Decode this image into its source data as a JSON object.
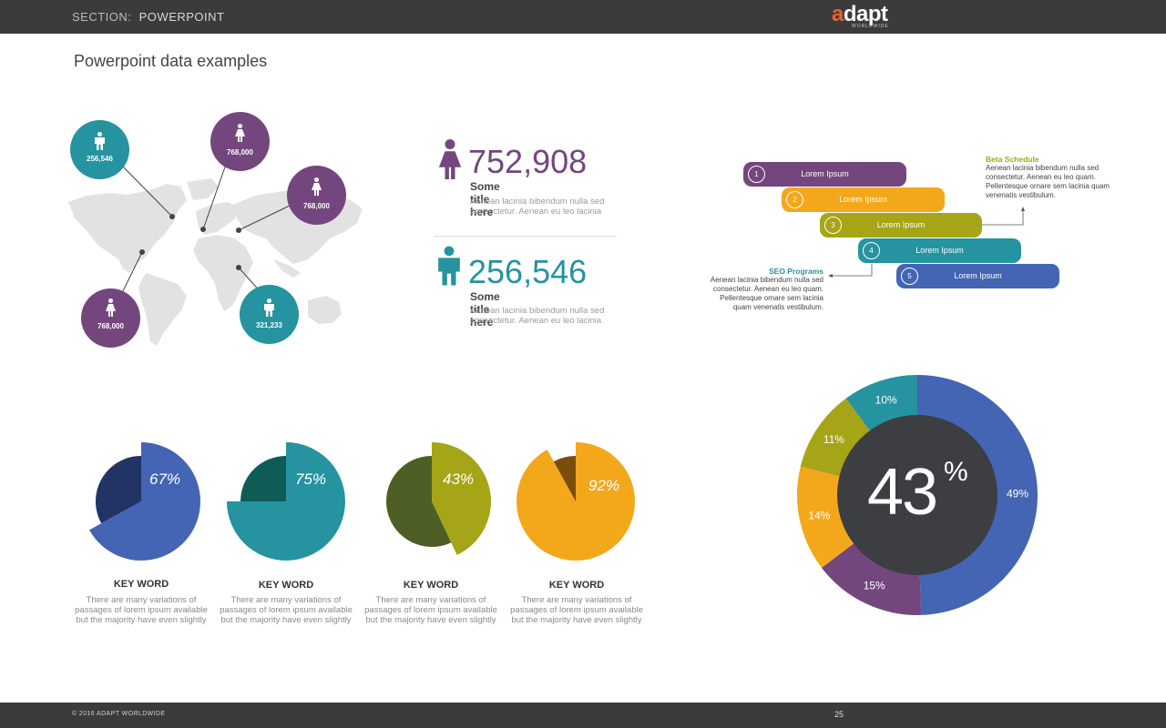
{
  "header": {
    "section_label": "SECTION:",
    "section_name": "POWERPOINT",
    "logo_text": "adapt",
    "logo_sub": "WORLDWIDE"
  },
  "page_title": "Powerpoint data examples",
  "map": {
    "bubbles": [
      "256,546",
      "768,000",
      "768,000",
      "768,000",
      "321,233"
    ]
  },
  "stats": [
    {
      "value": "752,908",
      "title": "Some title here",
      "desc": "Aenean lacinia bibendum nulla sed consectetur. Aenean eu leo lacinia",
      "color": "#74467e"
    },
    {
      "value": "256,546",
      "title": "Some title here",
      "desc": "Aenean lacinia bibendum nulla sed consectetur. Aenean eu leo lacinia",
      "color": "#2593a0"
    }
  ],
  "timeline": {
    "steps": [
      {
        "num": "1",
        "label": "Lorem Ipsum",
        "color": "#74467e"
      },
      {
        "num": "2",
        "label": "Lorem Ipsum",
        "color": "#f3a81c"
      },
      {
        "num": "3",
        "label": "Lorem Ipsum",
        "color": "#a5a517"
      },
      {
        "num": "4",
        "label": "Lorem Ipsum",
        "color": "#2593a0"
      },
      {
        "num": "5",
        "label": "Lorem Ipsum",
        "color": "#4464b4"
      }
    ],
    "beta": {
      "title": "Beta Schedule",
      "body": "Aenean lacinia bibendum nulla sed consectetur. Aenean eu leo quam. Pellentesque ornare sem lacinia quam venenatis vestibulum."
    },
    "seo": {
      "title": "SEO Programs",
      "body": "Aenean lacinia bibendum nulla sed consectetur. Aenean eu leo quam. Pellentesque ornare sem lacinia quam venenatis vestibulum."
    }
  },
  "chart_data": [
    {
      "type": "pie",
      "title": "",
      "values": [
        67,
        33
      ],
      "label": "67%",
      "colors": [
        "#4464b4",
        "#223366"
      ],
      "keyword": "KEY WORD",
      "desc": "There are many variations of passages of lorem ipsum available but the majority have even slightly"
    },
    {
      "type": "pie",
      "title": "",
      "values": [
        75,
        25
      ],
      "label": "75%",
      "colors": [
        "#2593a0",
        "#0e5c55"
      ],
      "keyword": "KEY WORD",
      "desc": "There are many variations of passages of lorem ipsum available but the majority have even slightly"
    },
    {
      "type": "pie",
      "title": "",
      "values": [
        43,
        57
      ],
      "label": "43%",
      "colors": [
        "#a5a517",
        "#4e5f26"
      ],
      "keyword": "KEY WORD",
      "desc": "There are many variations of passages of lorem ipsum available but the majority have even slightly"
    },
    {
      "type": "pie",
      "title": "",
      "values": [
        92,
        8
      ],
      "label": "92%",
      "colors": [
        "#f3a81c",
        "#7a4e0a"
      ],
      "keyword": "KEY WORD",
      "desc": "There are many variations of passages of lorem ipsum available but the majority have even slightly"
    },
    {
      "type": "pie",
      "title": "",
      "center_label": "43",
      "center_suffix": "%",
      "slices": [
        {
          "value": 49,
          "label": "49%",
          "color": "#4464b4"
        },
        {
          "value": 15,
          "label": "15%",
          "color": "#74467e"
        },
        {
          "value": 14,
          "label": "14%",
          "color": "#f3a81c"
        },
        {
          "value": 11,
          "label": "11%",
          "color": "#a5a517"
        },
        {
          "value": 10,
          "label": "10%",
          "color": "#2593a0"
        }
      ]
    }
  ],
  "footer": {
    "copyright": "© 2016 ADAPT WORLDWIDE",
    "page": "25"
  }
}
